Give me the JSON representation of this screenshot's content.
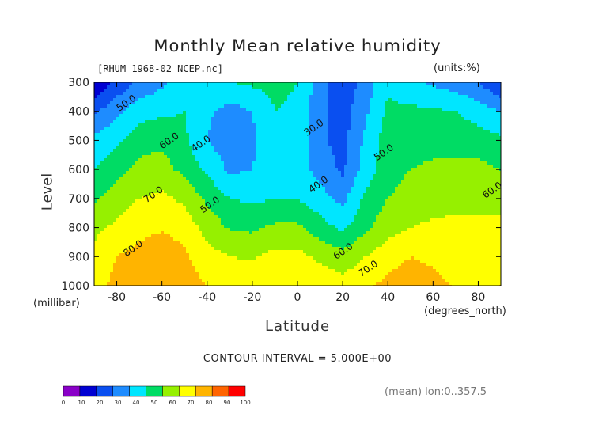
{
  "title": "Monthly Mean relative humidity",
  "file_label": "[RHUM_1968-02_NCEP.nc]",
  "units_label": "(units:%)",
  "y_axis_label": "Level",
  "y_axis_unit": "(millibar)",
  "x_axis_label": "Latitude",
  "x_axis_unit": "(degrees_north)",
  "contour_interval": "CONTOUR INTERVAL = 5.000E+00",
  "mean_label": "(mean) lon:0..357.5",
  "chart_data": {
    "type": "heatmap",
    "title": "Monthly Mean relative humidity",
    "xlabel": "Latitude",
    "ylabel": "Level",
    "xlim": [
      -90,
      90
    ],
    "ylim": [
      1000,
      300
    ],
    "x_ticks": [
      -80,
      -60,
      -40,
      -20,
      0,
      20,
      40,
      60,
      80
    ],
    "x_tick_labels": [
      "-80",
      "-60",
      "-40",
      "-20",
      "0",
      "20",
      "40",
      "60",
      "80"
    ],
    "y_ticks": [
      300,
      400,
      500,
      600,
      700,
      800,
      900,
      1000
    ],
    "y_tick_labels": [
      "300",
      "400",
      "500",
      "600",
      "700",
      "800",
      "900",
      "1000"
    ],
    "x": [
      -90,
      -80,
      -70,
      -60,
      -50,
      -40,
      -30,
      -20,
      -10,
      0,
      10,
      20,
      30,
      40,
      50,
      60,
      70,
      80,
      90
    ],
    "y": [
      300,
      400,
      500,
      600,
      700,
      800,
      900,
      1000
    ],
    "values": [
      [
        10,
        22,
        32,
        38,
        45,
        48,
        50,
        52,
        53,
        50,
        35,
        22,
        35,
        48,
        42,
        38,
        35,
        30,
        20
      ],
      [
        28,
        38,
        46,
        48,
        50,
        42,
        36,
        40,
        50,
        48,
        32,
        26,
        38,
        52,
        52,
        52,
        50,
        45,
        40
      ],
      [
        43,
        48,
        56,
        58,
        52,
        40,
        34,
        38,
        48,
        47,
        32,
        26,
        42,
        55,
        56,
        56,
        56,
        55,
        52
      ],
      [
        50,
        56,
        63,
        64,
        57,
        48,
        38,
        40,
        46,
        45,
        36,
        28,
        45,
        56,
        60,
        62,
        62,
        63,
        60
      ],
      [
        58,
        65,
        70,
        72,
        68,
        58,
        50,
        48,
        50,
        50,
        44,
        37,
        52,
        60,
        64,
        66,
        67,
        67,
        67
      ],
      [
        68,
        72,
        77,
        79,
        76,
        66,
        59,
        58,
        62,
        62,
        54,
        48,
        58,
        66,
        70,
        72,
        72,
        72,
        72
      ],
      [
        72,
        80,
        83,
        86,
        82,
        74,
        70,
        69,
        73,
        73,
        68,
        64,
        70,
        76,
        80,
        78,
        74,
        74,
        76
      ],
      [
        75,
        84,
        86,
        88,
        84,
        80,
        77,
        77,
        79,
        79,
        77,
        74,
        78,
        83,
        85,
        83,
        79,
        77,
        80
      ]
    ],
    "contour_labels": [
      {
        "text": "50.0",
        "x": -75,
        "y": 380
      },
      {
        "text": "60.0",
        "x": -56,
        "y": 510
      },
      {
        "text": "40.0",
        "x": -42,
        "y": 520
      },
      {
        "text": "70.0",
        "x": -63,
        "y": 695
      },
      {
        "text": "50.0",
        "x": -38,
        "y": 730
      },
      {
        "text": "80.0",
        "x": -72,
        "y": 880
      },
      {
        "text": "30.0",
        "x": 8,
        "y": 465
      },
      {
        "text": "40.0",
        "x": 10,
        "y": 660
      },
      {
        "text": "50.0",
        "x": 39,
        "y": 550
      },
      {
        "text": "60.0",
        "x": 21,
        "y": 890
      },
      {
        "text": "70.0",
        "x": 32,
        "y": 950
      },
      {
        "text": "60.0",
        "x": 87,
        "y": 680
      }
    ],
    "colorbar": {
      "levels": [
        0,
        10,
        20,
        30,
        40,
        50,
        60,
        70,
        80,
        90,
        100
      ],
      "tick_labels": [
        "0",
        "10",
        "20",
        "30",
        "40",
        "50",
        "60",
        "70",
        "80",
        "90",
        "100"
      ],
      "colors": [
        "#8a00c8",
        "#0000d2",
        "#0a4ff0",
        "#1e8cff",
        "#00e6ff",
        "#00dc64",
        "#96f000",
        "#ffff00",
        "#ffb400",
        "#ff6400",
        "#ff0000"
      ]
    }
  }
}
